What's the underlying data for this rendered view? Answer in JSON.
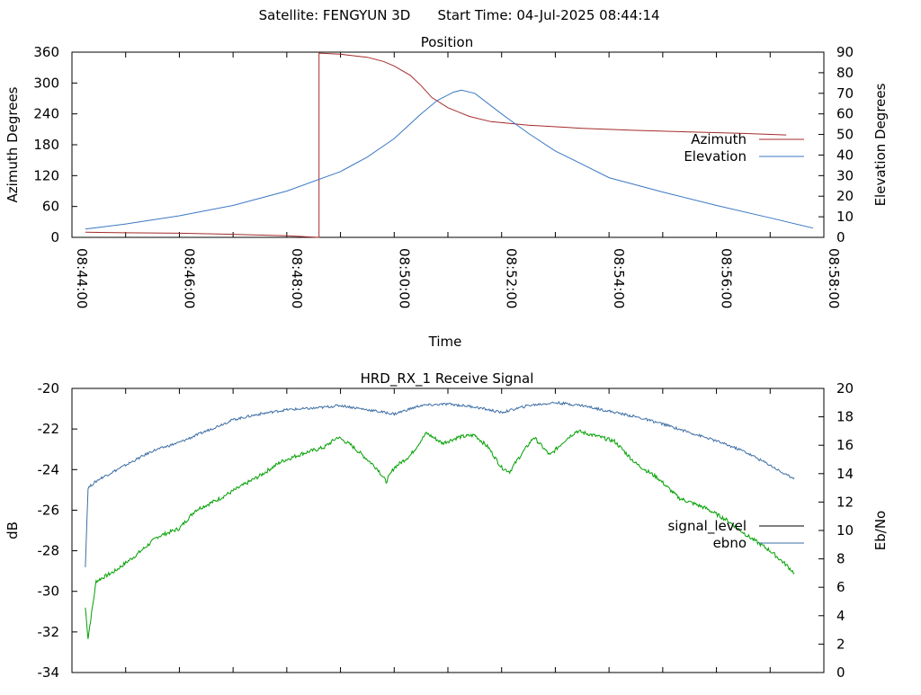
{
  "header": {
    "satellite_label": "Satellite: FENGYUN 3D",
    "start_label": "Start Time: 04-Jul-2025 08:44:14"
  },
  "position_chart": {
    "title": "Position",
    "xlabel": "Time",
    "y1label": "Azimuth Degrees",
    "y2label": "Elevation Degrees",
    "y1_ticks": [
      "0",
      "60",
      "120",
      "180",
      "240",
      "300",
      "360"
    ],
    "y2_ticks": [
      "0",
      "10",
      "20",
      "30",
      "40",
      "50",
      "60",
      "70",
      "80",
      "90"
    ],
    "x_ticks": [
      "08:44:00",
      "08:46:00",
      "08:48:00",
      "08:50:00",
      "08:52:00",
      "08:54:00",
      "08:56:00",
      "08:58:00"
    ],
    "legend": [
      "Azimuth",
      "Elevation"
    ]
  },
  "signal_chart": {
    "title": "HRD_RX_1 Receive Signal",
    "y1label": "dB",
    "y2label": "Eb/No",
    "y1_ticks": [
      "-34",
      "-32",
      "-30",
      "-28",
      "-26",
      "-24",
      "-22",
      "-20"
    ],
    "y2_ticks": [
      "0",
      "2",
      "4",
      "6",
      "8",
      "10",
      "12",
      "14",
      "16",
      "18",
      "20"
    ],
    "legend": [
      "signal_level",
      "ebno"
    ]
  },
  "colors": {
    "azimuth": "#a52a2a",
    "elevation": "#3b78c4",
    "signal_level": "#00a000",
    "ebno": "#3d6ea5",
    "axis": "#000000"
  },
  "chart_data": [
    {
      "type": "line",
      "title": "Position",
      "xlabel": "Time",
      "ylabel": "Azimuth Degrees",
      "y2label": "Elevation Degrees",
      "x_unit": "minutes after 08:44:00",
      "xlim": [
        0,
        14
      ],
      "ylim": [
        0,
        360
      ],
      "y2lim": [
        0,
        90
      ],
      "grid": false,
      "legend_position": "right",
      "series": [
        {
          "name": "Azimuth",
          "axis": "left",
          "color": "#a52a2a",
          "points": [
            [
              0.25,
              10
            ],
            [
              1.0,
              9
            ],
            [
              2.0,
              8
            ],
            [
              3.0,
              6
            ],
            [
              4.0,
              3
            ],
            [
              4.5,
              0.5
            ],
            [
              4.6,
              0
            ],
            [
              4.6,
              358
            ],
            [
              5.0,
              356
            ],
            [
              5.5,
              350
            ],
            [
              5.8,
              342
            ],
            [
              6.0,
              333
            ],
            [
              6.3,
              315
            ],
            [
              6.5,
              295
            ],
            [
              6.7,
              272
            ],
            [
              7.0,
              252
            ],
            [
              7.4,
              235
            ],
            [
              7.8,
              225
            ],
            [
              8.5,
              218
            ],
            [
              9.5,
              212
            ],
            [
              10.5,
              208
            ],
            [
              11.5,
              205
            ],
            [
              12.5,
              202
            ],
            [
              13.3,
              199
            ]
          ]
        },
        {
          "name": "Elevation",
          "axis": "right",
          "color": "#3b78c4",
          "points": [
            [
              0.25,
              4
            ],
            [
              1.0,
              6.5
            ],
            [
              2.0,
              10.5
            ],
            [
              3.0,
              15.5
            ],
            [
              4.0,
              22.5
            ],
            [
              5.0,
              32
            ],
            [
              5.5,
              39
            ],
            [
              6.0,
              48
            ],
            [
              6.5,
              60
            ],
            [
              6.8,
              66.5
            ],
            [
              7.1,
              70.5
            ],
            [
              7.25,
              71.5
            ],
            [
              7.5,
              70
            ],
            [
              8.0,
              60
            ],
            [
              8.5,
              50.5
            ],
            [
              9.0,
              42
            ],
            [
              9.5,
              35.5
            ],
            [
              10.0,
              29
            ],
            [
              11.0,
              22
            ],
            [
              12.0,
              15.5
            ],
            [
              13.0,
              9.5
            ],
            [
              13.8,
              4.5
            ]
          ]
        }
      ]
    },
    {
      "type": "line",
      "title": "HRD_RX_1 Receive Signal",
      "ylabel": "dB",
      "y2label": "Eb/No",
      "x_unit": "minutes after 08:44:00",
      "xlim": [
        0,
        14
      ],
      "ylim": [
        -34,
        -20
      ],
      "y2lim": [
        0,
        20
      ],
      "grid": false,
      "legend_position": "right",
      "series": [
        {
          "name": "signal_level",
          "axis": "left",
          "color": "#00a000",
          "points": [
            [
              0.25,
              -30.8
            ],
            [
              0.3,
              -32.3
            ],
            [
              0.45,
              -29.5
            ],
            [
              0.8,
              -29.0
            ],
            [
              1.2,
              -28.2
            ],
            [
              1.6,
              -27.3
            ],
            [
              2.0,
              -26.9
            ],
            [
              2.3,
              -26.0
            ],
            [
              2.7,
              -25.5
            ],
            [
              3.1,
              -24.9
            ],
            [
              3.5,
              -24.3
            ],
            [
              3.9,
              -23.6
            ],
            [
              4.3,
              -23.2
            ],
            [
              4.7,
              -22.9
            ],
            [
              4.95,
              -22.4
            ],
            [
              5.2,
              -22.8
            ],
            [
              5.5,
              -23.5
            ],
            [
              5.7,
              -24.0
            ],
            [
              5.85,
              -24.6
            ],
            [
              6.0,
              -23.9
            ],
            [
              6.3,
              -23.3
            ],
            [
              6.6,
              -22.2
            ],
            [
              6.9,
              -22.7
            ],
            [
              7.2,
              -22.4
            ],
            [
              7.5,
              -22.3
            ],
            [
              7.75,
              -22.9
            ],
            [
              8.0,
              -23.9
            ],
            [
              8.15,
              -24.1
            ],
            [
              8.3,
              -23.5
            ],
            [
              8.6,
              -22.4
            ],
            [
              8.9,
              -23.3
            ],
            [
              9.2,
              -22.5
            ],
            [
              9.4,
              -22.1
            ],
            [
              9.7,
              -22.3
            ],
            [
              10.1,
              -22.6
            ],
            [
              10.5,
              -23.7
            ],
            [
              10.9,
              -24.4
            ],
            [
              11.3,
              -25.4
            ],
            [
              11.8,
              -25.9
            ],
            [
              12.2,
              -26.5
            ],
            [
              12.6,
              -27.3
            ],
            [
              13.0,
              -28.0
            ],
            [
              13.3,
              -28.7
            ],
            [
              13.45,
              -29.1
            ]
          ]
        },
        {
          "name": "ebno",
          "axis": "right",
          "color": "#3d6ea5",
          "points": [
            [
              0.25,
              7.5
            ],
            [
              0.3,
              13.0
            ],
            [
              0.5,
              13.6
            ],
            [
              1.0,
              14.6
            ],
            [
              1.5,
              15.6
            ],
            [
              2.0,
              16.2
            ],
            [
              2.5,
              17.0
            ],
            [
              3.0,
              17.8
            ],
            [
              3.5,
              18.2
            ],
            [
              4.0,
              18.5
            ],
            [
              4.5,
              18.6
            ],
            [
              5.0,
              18.8
            ],
            [
              5.5,
              18.5
            ],
            [
              6.0,
              18.2
            ],
            [
              6.5,
              18.8
            ],
            [
              7.0,
              18.9
            ],
            [
              7.5,
              18.7
            ],
            [
              8.0,
              18.3
            ],
            [
              8.5,
              18.8
            ],
            [
              9.0,
              19.0
            ],
            [
              9.5,
              18.8
            ],
            [
              10.0,
              18.4
            ],
            [
              10.5,
              18.0
            ],
            [
              11.0,
              17.5
            ],
            [
              11.5,
              16.9
            ],
            [
              12.0,
              16.3
            ],
            [
              12.5,
              15.6
            ],
            [
              13.0,
              14.6
            ],
            [
              13.3,
              13.9
            ],
            [
              13.45,
              13.7
            ]
          ]
        }
      ]
    }
  ]
}
